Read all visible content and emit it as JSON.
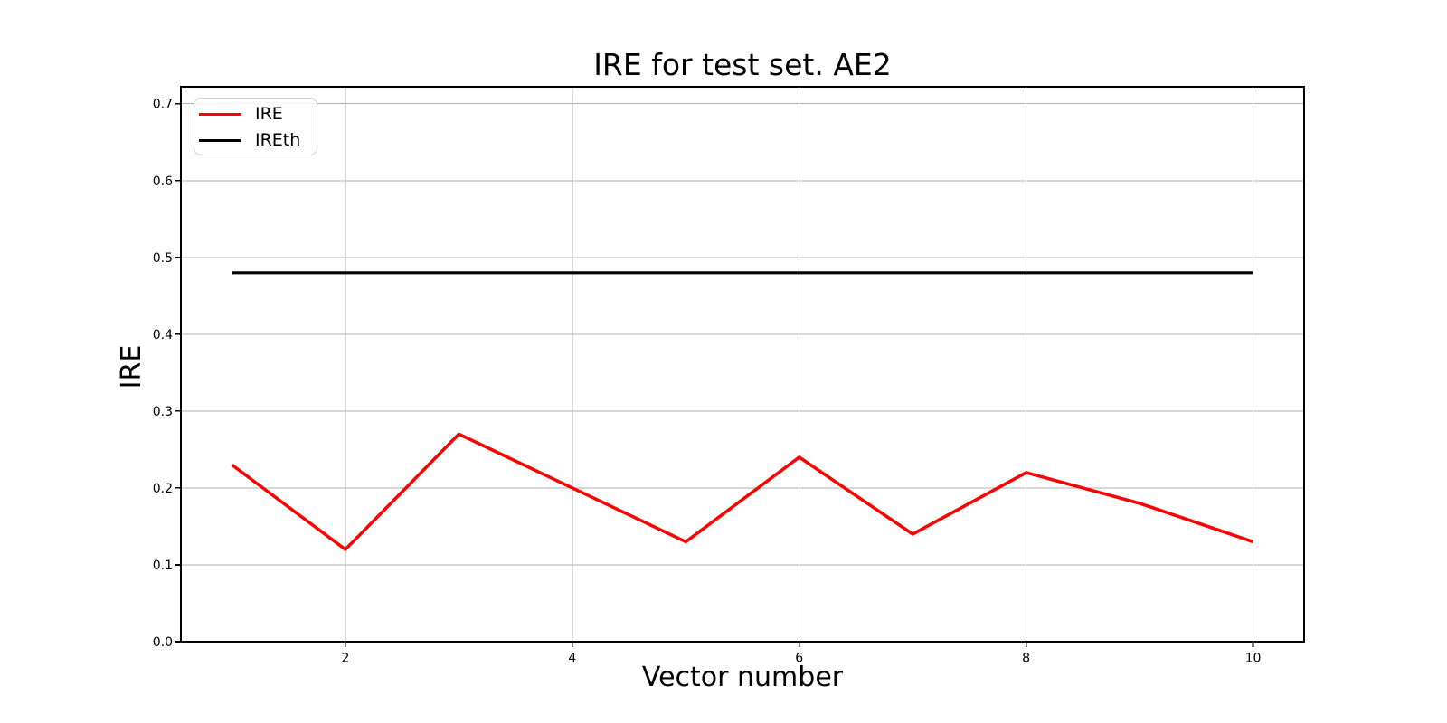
{
  "figure": {
    "background": "#ffffff"
  },
  "chart_data": {
    "type": "line",
    "title": "IRE for test set. AE2",
    "xlabel": "Vector number",
    "ylabel": "IRE",
    "x": [
      1,
      2,
      3,
      4,
      5,
      6,
      7,
      8,
      9,
      10
    ],
    "series": [
      {
        "name": "IRE",
        "color": "#ff0000",
        "linewidth": 3.5,
        "values": [
          0.23,
          0.12,
          0.27,
          0.2,
          0.13,
          0.24,
          0.14,
          0.22,
          0.18,
          0.13
        ]
      },
      {
        "name": "IREth",
        "color": "#000000",
        "linewidth": 3.2,
        "values": [
          0.48,
          0.48,
          0.48,
          0.48,
          0.48,
          0.48,
          0.48,
          0.48,
          0.48,
          0.48
        ]
      }
    ],
    "xlim": [
      0.55,
      10.45
    ],
    "ylim": [
      0,
      0.722
    ],
    "xticks": [
      2,
      4,
      6,
      8,
      10
    ],
    "xtick_labels": [
      "2",
      "4",
      "6",
      "8",
      "10"
    ],
    "yticks": [
      0.0,
      0.1,
      0.2,
      0.3,
      0.4,
      0.5,
      0.6,
      0.7
    ],
    "ytick_labels": [
      "0.0",
      "0.1",
      "0.2",
      "0.3",
      "0.4",
      "0.5",
      "0.6",
      "0.7"
    ],
    "grid": true,
    "grid_color": "#b0b0b0",
    "axis_color": "#000000",
    "legend": {
      "position": "upper left",
      "entries": [
        {
          "label": "IRE",
          "color": "#ff0000"
        },
        {
          "label": "IREth",
          "color": "#000000"
        }
      ]
    }
  }
}
